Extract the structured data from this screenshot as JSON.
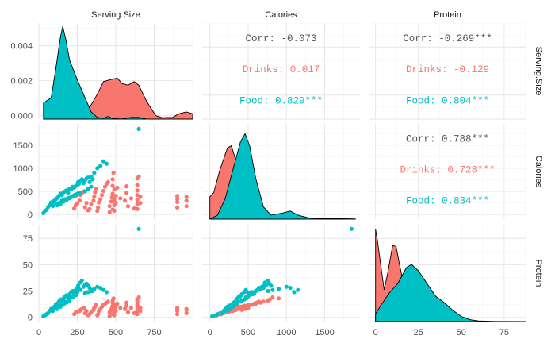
{
  "chart_data": {
    "type": "scatter",
    "variables": [
      "Serving.Size",
      "Calories",
      "Protein"
    ],
    "groups": [
      {
        "name": "Drinks",
        "color": "#F8766D"
      },
      {
        "name": "Food",
        "color": "#00BFC4"
      }
    ],
    "axes": {
      "Serving.Size": {
        "range": [
          0,
          1000
        ],
        "ticks": [
          0,
          250,
          500,
          750
        ],
        "tick_labels": [
          "0",
          "250",
          "500",
          "750"
        ]
      },
      "Calories": {
        "range": [
          -100,
          1960
        ],
        "ticks": [
          0,
          500,
          1000,
          1500
        ],
        "tick_labels": [
          "0",
          "500",
          "1000",
          "1500"
        ]
      },
      "Protein": {
        "range": [
          -4,
          88
        ],
        "ticks": [
          0,
          25,
          50,
          75
        ],
        "tick_labels": [
          "0",
          "25",
          "50",
          "75"
        ]
      },
      "density_serving": {
        "range": [
          -0.0002,
          0.0053
        ],
        "ticks": [
          0,
          0.002,
          0.004
        ],
        "tick_labels": [
          "0.000",
          "0.002",
          "0.004"
        ]
      }
    },
    "correlations": [
      {
        "pair": [
          "Calories",
          "Serving.Size"
        ],
        "lines": [
          {
            "label": "Corr:",
            "value": "-0.073",
            "group": "all"
          },
          {
            "label": "Drinks:",
            "value": "0.017",
            "group": "Drinks"
          },
          {
            "label": "Food:",
            "value": "0.829***",
            "group": "Food"
          }
        ]
      },
      {
        "pair": [
          "Protein",
          "Serving.Size"
        ],
        "lines": [
          {
            "label": "Corr:",
            "value": "-0.269***",
            "group": "all"
          },
          {
            "label": "Drinks:",
            "value": "-0.129",
            "group": "Drinks"
          },
          {
            "label": "Food:",
            "value": "0.804***",
            "group": "Food"
          }
        ]
      },
      {
        "pair": [
          "Protein",
          "Calories"
        ],
        "lines": [
          {
            "label": "Corr:",
            "value": "0.788***",
            "group": "all"
          },
          {
            "label": "Drinks:",
            "value": "0.728***",
            "group": "Drinks"
          },
          {
            "label": "Food:",
            "value": "0.834***",
            "group": "Food"
          }
        ]
      }
    ],
    "densities": {
      "Serving.Size": {
        "Drinks": [
          [
            30,
            0
          ],
          [
            100,
            4e-05
          ],
          [
            200,
            0.00015
          ],
          [
            280,
            0.0004
          ],
          [
            340,
            0.0008
          ],
          [
            380,
            0.0014
          ],
          [
            420,
            0.0021
          ],
          [
            460,
            0.0022
          ],
          [
            510,
            0.0023
          ],
          [
            540,
            0.002
          ],
          [
            580,
            0.0019
          ],
          [
            620,
            0.0021
          ],
          [
            650,
            0.0019
          ],
          [
            700,
            0.001
          ],
          [
            760,
            0.0002
          ],
          [
            800,
            8e-05
          ],
          [
            870,
            0.0001
          ],
          [
            910,
            0.0003
          ],
          [
            960,
            0.0004
          ],
          [
            1000,
            0.0003
          ]
        ],
        "Food": [
          [
            30,
            0.0009
          ],
          [
            80,
            0.0012
          ],
          [
            110,
            0.0028
          ],
          [
            140,
            0.0046
          ],
          [
            155,
            0.0052
          ],
          [
            175,
            0.0045
          ],
          [
            200,
            0.0033
          ],
          [
            250,
            0.0022
          ],
          [
            300,
            0.0012
          ],
          [
            340,
            0.0004
          ],
          [
            380,
            0.0001
          ],
          [
            420,
            5e-05
          ],
          [
            450,
            0.00015
          ],
          [
            480,
            3e-05
          ],
          [
            540,
            1e-05
          ],
          [
            600,
            0.0001
          ],
          [
            650,
            0.0001
          ],
          [
            700,
            0
          ]
        ]
      },
      "Calories": {
        "Drinks": [
          [
            0,
            0.0011
          ],
          [
            50,
            0.0013
          ],
          [
            130,
            0.0024
          ],
          [
            230,
            0.0035
          ],
          [
            280,
            0.0036
          ],
          [
            330,
            0.003
          ],
          [
            400,
            0.0016
          ],
          [
            480,
            0.0007
          ],
          [
            560,
            0.0003
          ],
          [
            700,
            0.00015
          ],
          [
            900,
            0.0001
          ],
          [
            1100,
            5e-05
          ],
          [
            1400,
            3e-05
          ],
          [
            1700,
            2e-05
          ],
          [
            1900,
            1e-05
          ]
        ],
        "Food": [
          [
            0,
            0
          ],
          [
            100,
            0.0002
          ],
          [
            200,
            0.001
          ],
          [
            300,
            0.0024
          ],
          [
            400,
            0.0038
          ],
          [
            460,
            0.0042
          ],
          [
            520,
            0.0036
          ],
          [
            600,
            0.002
          ],
          [
            700,
            0.0006
          ],
          [
            800,
            0.0002
          ],
          [
            950,
            0.0003
          ],
          [
            1050,
            0.0004
          ],
          [
            1150,
            0.0002
          ],
          [
            1300,
            5e-05
          ],
          [
            1500,
            2e-05
          ],
          [
            1750,
            1e-05
          ],
          [
            1900,
            0
          ]
        ]
      },
      "Protein": {
        "Drinks": [
          [
            0,
            0.145
          ],
          [
            1,
            0.13
          ],
          [
            3,
            0.09
          ],
          [
            5,
            0.05
          ],
          [
            7,
            0.075
          ],
          [
            10,
            0.12
          ],
          [
            12,
            0.118
          ],
          [
            14,
            0.09
          ],
          [
            17,
            0.05
          ],
          [
            20,
            0.02
          ],
          [
            25,
            0.006
          ],
          [
            30,
            0.002
          ],
          [
            40,
            0
          ],
          [
            88,
            0
          ]
        ],
        "Food": [
          [
            0,
            0.012
          ],
          [
            3,
            0.025
          ],
          [
            8,
            0.045
          ],
          [
            13,
            0.06
          ],
          [
            18,
            0.085
          ],
          [
            21,
            0.09
          ],
          [
            25,
            0.08
          ],
          [
            30,
            0.06
          ],
          [
            35,
            0.04
          ],
          [
            40,
            0.03
          ],
          [
            45,
            0.018
          ],
          [
            50,
            0.008
          ],
          [
            55,
            0.003
          ],
          [
            60,
            0.001
          ],
          [
            70,
            0.0003
          ],
          [
            88,
            0
          ]
        ]
      }
    },
    "points": {
      "Drinks": [
        [
          230,
          130,
          3
        ],
        [
          240,
          200,
          5
        ],
        [
          250,
          240,
          5
        ],
        [
          265,
          300,
          6
        ],
        [
          270,
          420,
          7
        ],
        [
          280,
          460,
          8
        ],
        [
          295,
          500,
          9
        ],
        [
          300,
          160,
          4
        ],
        [
          310,
          250,
          6
        ],
        [
          320,
          90,
          2
        ],
        [
          330,
          120,
          3
        ],
        [
          340,
          220,
          5
        ],
        [
          355,
          300,
          7
        ],
        [
          360,
          380,
          9
        ],
        [
          365,
          480,
          10
        ],
        [
          370,
          560,
          12
        ],
        [
          380,
          80,
          2
        ],
        [
          385,
          150,
          3
        ],
        [
          390,
          260,
          6
        ],
        [
          400,
          330,
          8
        ],
        [
          410,
          420,
          10
        ],
        [
          420,
          510,
          12
        ],
        [
          430,
          600,
          13
        ],
        [
          440,
          660,
          14
        ],
        [
          450,
          700,
          15
        ],
        [
          460,
          50,
          1
        ],
        [
          460,
          180,
          5
        ],
        [
          470,
          280,
          7
        ],
        [
          475,
          370,
          9
        ],
        [
          480,
          110,
          3
        ],
        [
          480,
          450,
          11
        ],
        [
          480,
          620,
          14
        ],
        [
          480,
          760,
          16
        ],
        [
          485,
          900,
          18
        ],
        [
          490,
          80,
          2
        ],
        [
          490,
          200,
          5
        ],
        [
          490,
          320,
          8
        ],
        [
          490,
          540,
          12
        ],
        [
          500,
          250,
          6
        ],
        [
          500,
          400,
          10
        ],
        [
          510,
          580,
          13
        ],
        [
          530,
          350,
          9
        ],
        [
          560,
          300,
          8
        ],
        [
          570,
          470,
          11
        ],
        [
          570,
          610,
          14
        ],
        [
          580,
          180,
          5
        ],
        [
          600,
          350,
          9
        ],
        [
          620,
          130,
          4
        ],
        [
          640,
          120,
          3
        ],
        [
          640,
          220,
          6
        ],
        [
          640,
          320,
          8
        ],
        [
          640,
          420,
          10
        ],
        [
          640,
          520,
          12
        ],
        [
          640,
          640,
          15
        ],
        [
          640,
          780,
          17
        ],
        [
          650,
          820,
          19
        ],
        [
          660,
          250,
          6
        ],
        [
          660,
          380,
          9
        ],
        [
          900,
          150,
          3
        ],
        [
          900,
          270,
          6
        ],
        [
          900,
          340,
          7
        ],
        [
          900,
          400,
          9
        ],
        [
          960,
          180,
          4
        ],
        [
          960,
          300,
          7
        ],
        [
          960,
          380,
          8
        ]
      ],
      "Food": [
        [
          30,
          30,
          1
        ],
        [
          40,
          80,
          2
        ],
        [
          50,
          100,
          3
        ],
        [
          60,
          160,
          4
        ],
        [
          70,
          200,
          6
        ],
        [
          80,
          260,
          8
        ],
        [
          90,
          240,
          7
        ],
        [
          100,
          300,
          10
        ],
        [
          110,
          330,
          12
        ],
        [
          120,
          360,
          13
        ],
        [
          130,
          400,
          15
        ],
        [
          140,
          450,
          17
        ],
        [
          150,
          420,
          16
        ],
        [
          160,
          480,
          18
        ],
        [
          170,
          500,
          20
        ],
        [
          180,
          520,
          21
        ],
        [
          190,
          470,
          19
        ],
        [
          200,
          560,
          22
        ],
        [
          210,
          540,
          24
        ],
        [
          220,
          600,
          25
        ],
        [
          230,
          580,
          23
        ],
        [
          240,
          620,
          26
        ],
        [
          250,
          640,
          28
        ],
        [
          255,
          700,
          30
        ],
        [
          260,
          660,
          27
        ],
        [
          270,
          720,
          33
        ],
        [
          280,
          760,
          35
        ],
        [
          290,
          680,
          29
        ],
        [
          300,
          740,
          31
        ],
        [
          310,
          780,
          32
        ],
        [
          320,
          800,
          30
        ],
        [
          330,
          700,
          28
        ],
        [
          340,
          820,
          26
        ],
        [
          350,
          760,
          25
        ],
        [
          360,
          900,
          27
        ],
        [
          380,
          1000,
          29
        ],
        [
          400,
          1050,
          28
        ],
        [
          420,
          1150,
          26
        ],
        [
          440,
          1100,
          24
        ],
        [
          650,
          1850,
          84
        ],
        [
          90,
          180,
          6
        ],
        [
          110,
          220,
          9
        ],
        [
          130,
          250,
          11
        ],
        [
          150,
          300,
          13
        ],
        [
          170,
          330,
          15
        ],
        [
          190,
          360,
          18
        ],
        [
          210,
          380,
          20
        ],
        [
          230,
          420,
          22
        ],
        [
          250,
          450,
          24
        ],
        [
          270,
          470,
          26
        ],
        [
          160,
          280,
          12
        ],
        [
          180,
          310,
          14
        ],
        [
          200,
          350,
          16
        ],
        [
          220,
          390,
          19
        ],
        [
          240,
          410,
          21
        ],
        [
          120,
          200,
          8
        ],
        [
          140,
          230,
          10
        ],
        [
          300,
          500,
          23
        ],
        [
          320,
          550,
          24
        ],
        [
          340,
          600,
          25
        ]
      ]
    }
  }
}
